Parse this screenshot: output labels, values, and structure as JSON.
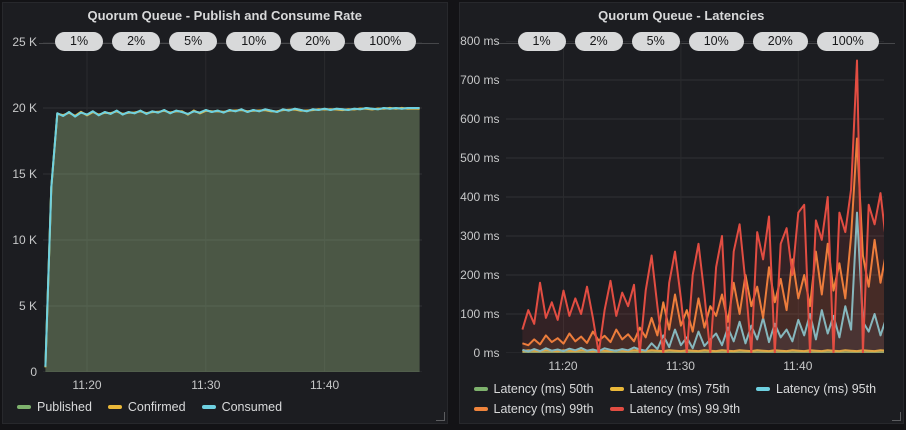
{
  "ui": {
    "panel_background": "#1c1d21",
    "page_background": "#131316",
    "annotation_pill_background": "#d8d9da",
    "axis_text_color": "#c7c8c9",
    "legend_text_color": "#d8d9da"
  },
  "chart_data": [
    {
      "type": "line",
      "title": "Quorum Queue - Publish and Consume Rate",
      "annotations": [
        "1%",
        "2%",
        "5%",
        "10%",
        "20%",
        "100%"
      ],
      "legend_position": "bottom",
      "grid": true,
      "x_start": 16.5,
      "x_step": 0.5,
      "xlim": [
        16.3,
        48.2
      ],
      "xticks": [
        {
          "v": 20,
          "label": "11:20"
        },
        {
          "v": 30,
          "label": "11:30"
        },
        {
          "v": 40,
          "label": "11:40"
        }
      ],
      "ylim": [
        0,
        25000
      ],
      "yticks": [
        {
          "v": 0,
          "label": "0"
        },
        {
          "v": 5000,
          "label": "5 K"
        },
        {
          "v": 10000,
          "label": "10 K"
        },
        {
          "v": 15000,
          "label": "15 K"
        },
        {
          "v": 20000,
          "label": "20 K"
        },
        {
          "v": 25000,
          "label": "25 K"
        }
      ],
      "series": [
        {
          "name": "Published",
          "color": "#7eb26d",
          "fill_opacity": 0.14,
          "values": [
            400,
            14000,
            19600,
            19400,
            19700,
            19350,
            19650,
            19500,
            19750,
            19450,
            19700,
            19550,
            19800,
            19500,
            19700,
            19600,
            19800,
            19550,
            19750,
            19650,
            19850,
            19600,
            19800,
            19700,
            19550,
            19750,
            19650,
            19850,
            19700,
            19800,
            19650,
            19850,
            19750,
            19900,
            19700,
            19850,
            19750,
            19900,
            19800,
            19700,
            19900,
            19800,
            19950,
            19850,
            19750,
            19900,
            19850,
            19950,
            19850,
            19950,
            19900,
            19850,
            19950,
            19900,
            20000,
            19950,
            19900,
            20000,
            19950,
            20000,
            19950,
            20000,
            20000,
            20000
          ]
        },
        {
          "name": "Confirmed",
          "color": "#eab839",
          "fill_opacity": 0.14,
          "values": [
            350,
            13950,
            19560,
            19460,
            19640,
            19410,
            19710,
            19440,
            19690,
            19510,
            19640,
            19610,
            19740,
            19560,
            19640,
            19660,
            19740,
            19610,
            19690,
            19710,
            19790,
            19660,
            19740,
            19760,
            19490,
            19810,
            19590,
            19790,
            19760,
            19740,
            19710,
            19790,
            19810,
            19840,
            19760,
            19790,
            19810,
            19840,
            19740,
            19760,
            19840,
            19860,
            19890,
            19790,
            19810,
            19840,
            19910,
            19890,
            19910,
            19890,
            19840,
            19910,
            19890,
            19960,
            19940,
            19890,
            19960,
            19940,
            20010,
            19940,
            20010,
            19940,
            19960,
            19940
          ]
        },
        {
          "name": "Consumed",
          "color": "#6ed0e0",
          "fill_opacity": 0.14,
          "values": [
            400,
            14000,
            19600,
            19400,
            19700,
            19350,
            19650,
            19500,
            19750,
            19450,
            19700,
            19550,
            19800,
            19500,
            19700,
            19600,
            19800,
            19550,
            19750,
            19650,
            19850,
            19600,
            19800,
            19700,
            19550,
            19750,
            19650,
            19850,
            19700,
            19800,
            19650,
            19850,
            19750,
            19900,
            19700,
            19850,
            19750,
            19900,
            19800,
            19700,
            19900,
            19800,
            19950,
            19850,
            19750,
            19900,
            19850,
            19950,
            19850,
            19950,
            19900,
            19850,
            19950,
            19900,
            20000,
            19950,
            19900,
            20000,
            19950,
            20000,
            19950,
            20000,
            20000,
            20000
          ]
        }
      ]
    },
    {
      "type": "line",
      "title": "Quorum Queue - Latencies",
      "annotations": [
        "1%",
        "2%",
        "5%",
        "10%",
        "20%",
        "100%"
      ],
      "legend_position": "bottom",
      "grid": true,
      "x_start": 16.5,
      "x_step": 0.5,
      "xlim": [
        15.1,
        47.3
      ],
      "xticks": [
        {
          "v": 20,
          "label": "11:20"
        },
        {
          "v": 30,
          "label": "11:30"
        },
        {
          "v": 40,
          "label": "11:40"
        }
      ],
      "ylim": [
        0,
        800
      ],
      "yticks": [
        {
          "v": 0,
          "label": "0 ms"
        },
        {
          "v": 100,
          "label": "100 ms"
        },
        {
          "v": 200,
          "label": "200 ms"
        },
        {
          "v": 300,
          "label": "300 ms"
        },
        {
          "v": 400,
          "label": "400 ms"
        },
        {
          "v": 500,
          "label": "500 ms"
        },
        {
          "v": 600,
          "label": "600 ms"
        },
        {
          "v": 700,
          "label": "700 ms"
        },
        {
          "v": 800,
          "label": "800 ms"
        }
      ],
      "series": [
        {
          "name": "Latency (ms) 50th",
          "color": "#7eb26d",
          "fill_opacity": 0.05,
          "values": [
            2,
            2,
            2,
            2,
            2,
            2,
            2,
            2,
            2,
            2,
            2,
            2,
            2,
            2,
            2,
            2,
            2,
            2,
            2,
            2,
            2,
            2,
            2,
            2,
            2,
            2,
            2,
            2,
            2,
            2,
            2,
            2,
            2,
            2,
            2,
            2,
            2,
            2,
            2,
            2,
            2,
            2,
            2,
            2,
            2,
            2,
            2,
            2,
            2,
            2,
            2,
            2,
            2,
            2,
            2,
            2,
            2,
            2,
            2,
            2,
            2,
            2,
            2,
            2
          ]
        },
        {
          "name": "Latency (ms) 75th",
          "color": "#eab839",
          "fill_opacity": 0.05,
          "values": [
            5,
            7,
            6,
            5,
            7,
            6,
            5,
            7,
            6,
            5,
            7,
            6,
            5,
            7,
            6,
            5,
            7,
            6,
            5,
            7,
            6,
            5,
            7,
            6,
            5,
            7,
            6,
            5,
            7,
            6,
            5,
            7,
            6,
            5,
            7,
            6,
            5,
            7,
            6,
            5,
            7,
            6,
            5,
            7,
            6,
            5,
            7,
            6,
            5,
            7,
            6,
            5,
            7,
            6,
            5,
            7,
            6,
            5,
            7,
            6,
            5,
            7,
            6,
            5
          ]
        },
        {
          "name": "Latency (ms) 95th",
          "color": "#6ed0e0",
          "fill_opacity": 0.08,
          "values": [
            8,
            4,
            10,
            5,
            12,
            6,
            9,
            5,
            11,
            7,
            13,
            6,
            9,
            5,
            12,
            8,
            6,
            10,
            7,
            14,
            9,
            6,
            25,
            10,
            45,
            15,
            60,
            20,
            40,
            12,
            55,
            18,
            35,
            50,
            20,
            65,
            30,
            80,
            25,
            70,
            35,
            90,
            28,
            75,
            40,
            60,
            30,
            85,
            45,
            100,
            35,
            110,
            50,
            95,
            40,
            120,
            60,
            360,
            80,
            55,
            100,
            45,
            90,
            60
          ]
        },
        {
          "name": "Latency (ms) 99th",
          "color": "#ef843c",
          "fill_opacity": 0.1,
          "values": [
            25,
            20,
            35,
            22,
            45,
            28,
            38,
            24,
            50,
            30,
            42,
            26,
            55,
            32,
            44,
            28,
            60,
            35,
            48,
            30,
            65,
            40,
            90,
            45,
            130,
            60,
            150,
            70,
            110,
            55,
            140,
            65,
            120,
            95,
            150,
            80,
            180,
            100,
            200,
            120,
            170,
            90,
            220,
            130,
            190,
            110,
            240,
            140,
            200,
            120,
            260,
            150,
            280,
            160,
            230,
            140,
            300,
            550,
            250,
            170,
            290,
            180,
            260,
            190
          ]
        },
        {
          "name": "Latency (ms) 99.9th",
          "color": "#e24d42",
          "fill_opacity": 0.12,
          "values": [
            60,
            110,
            75,
            180,
            90,
            130,
            85,
            160,
            95,
            140,
            100,
            170,
            90,
            0,
            110,
            185,
            95,
            155,
            120,
            175,
            0,
            160,
            250,
            120,
            0,
            180,
            260,
            140,
            0,
            200,
            280,
            150,
            0,
            220,
            300,
            0,
            260,
            330,
            180,
            0,
            310,
            240,
            350,
            0,
            280,
            320,
            200,
            360,
            380,
            0,
            340,
            290,
            400,
            0,
            360,
            310,
            420,
            750,
            0,
            380,
            330,
            410,
            280,
            230
          ]
        }
      ]
    }
  ]
}
